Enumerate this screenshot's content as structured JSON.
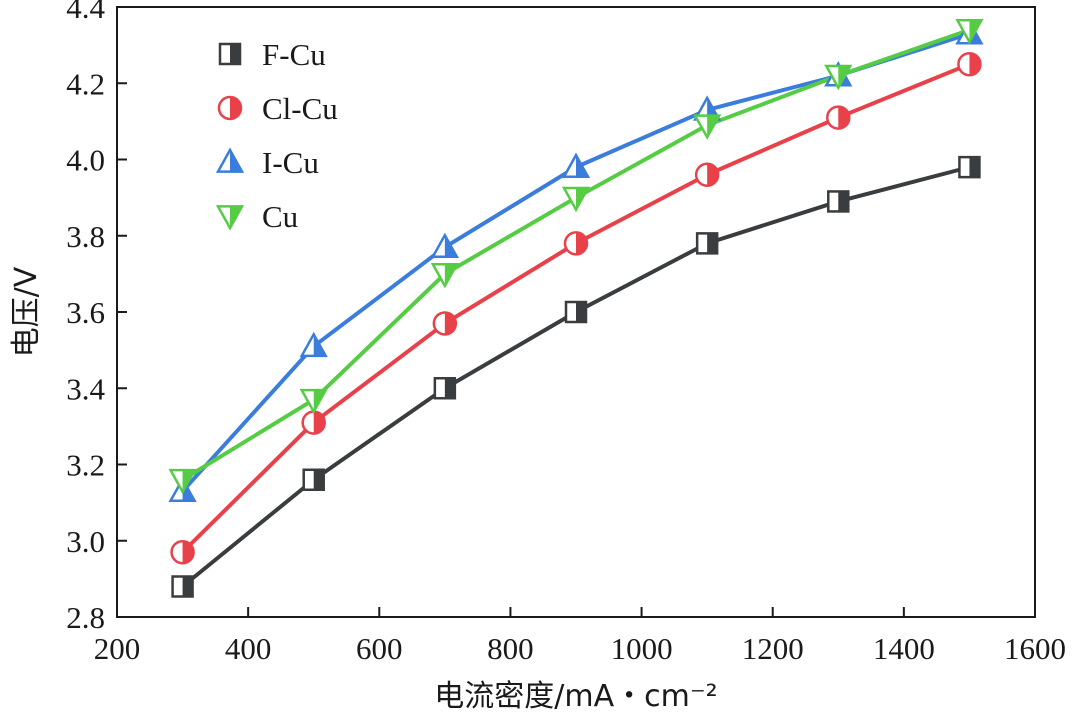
{
  "chart_data": {
    "type": "line",
    "x": [
      300,
      500,
      700,
      900,
      1100,
      1300,
      1500
    ],
    "xlim": [
      200,
      1600
    ],
    "ylim": [
      2.8,
      4.4
    ],
    "x_ticks": [
      "200",
      "400",
      "600",
      "800",
      "1000",
      "1200",
      "1400",
      "1600"
    ],
    "y_ticks": [
      "2.8",
      "3.0",
      "3.2",
      "3.4",
      "3.6",
      "3.8",
      "4.0",
      "4.2",
      "4.4"
    ],
    "xlabel": "电流密度/mA・cm⁻²",
    "ylabel": "电压/V",
    "grid": false,
    "legend_position": "top-left",
    "series": [
      {
        "name": "F-Cu",
        "marker": "half-square",
        "color": "#3a3d3f",
        "values": [
          2.88,
          3.16,
          3.4,
          3.6,
          3.78,
          3.89,
          3.98
        ]
      },
      {
        "name": "Cl-Cu",
        "marker": "half-circle",
        "color": "#e8414a",
        "values": [
          2.97,
          3.31,
          3.57,
          3.78,
          3.96,
          4.11,
          4.25
        ]
      },
      {
        "name": "I-Cu",
        "marker": "half-triangle",
        "color": "#3b7ddd",
        "values": [
          3.13,
          3.51,
          3.77,
          3.98,
          4.13,
          4.22,
          4.33
        ]
      },
      {
        "name": "Cu",
        "marker": "half-triangle-down",
        "color": "#55cc44",
        "values": [
          3.16,
          3.37,
          3.7,
          3.9,
          4.09,
          4.22,
          4.34
        ]
      }
    ]
  }
}
